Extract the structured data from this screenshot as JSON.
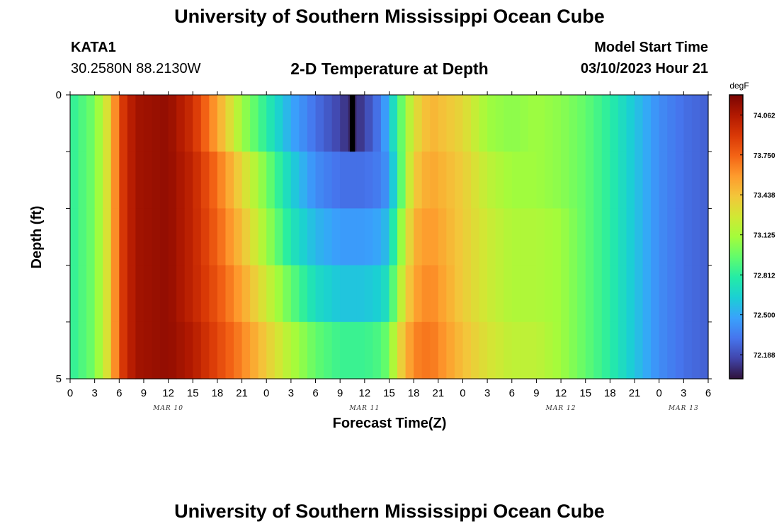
{
  "header": {
    "title": "University of Southern Mississippi Ocean Cube",
    "station_name": "KATA1",
    "station_coords": "30.2580N  88.2130W",
    "chart_title": "2-D Temperature at Depth",
    "model_label": "Model Start Time",
    "model_time": "03/10/2023 Hour 21"
  },
  "footer": {
    "title": "University of Southern Mississippi Ocean Cube"
  },
  "chart_data": {
    "type": "heatmap",
    "title": "2-D Temperature at Depth",
    "xlabel": "Forecast Time(Z)",
    "ylabel": "Depth (ft)",
    "x_unit": "hours since MAR 10 00Z",
    "xlim": [
      0,
      78
    ],
    "ylim": [
      0,
      5
    ],
    "y_inverted": true,
    "x_tick_labels": [
      "0",
      "3",
      "6",
      "9",
      "12",
      "15",
      "18",
      "21",
      "0",
      "3",
      "6",
      "9",
      "12",
      "15",
      "18",
      "21",
      "0",
      "3",
      "6",
      "9",
      "12",
      "15",
      "18",
      "21",
      "0",
      "3",
      "6"
    ],
    "x_tick_hours": [
      0,
      3,
      6,
      9,
      12,
      15,
      18,
      21,
      24,
      27,
      30,
      33,
      36,
      39,
      42,
      45,
      48,
      51,
      54,
      57,
      60,
      63,
      66,
      69,
      72,
      75,
      78
    ],
    "y_tick_labels": [
      "0",
      "5"
    ],
    "y_tick_values": [
      0,
      5
    ],
    "date_labels": [
      {
        "label": "MAR 10",
        "hour": 12
      },
      {
        "label": "MAR 11",
        "hour": 36
      },
      {
        "label": "MAR 12",
        "hour": 60
      },
      {
        "label": "MAR 13",
        "hour": 75
      }
    ],
    "depth_bands": [
      0,
      1,
      2,
      3,
      4,
      5
    ],
    "colorbar": {
      "unit": "degF",
      "ticks": [
        "74.062",
        "73.750",
        "73.438",
        "73.125",
        "72.812",
        "72.500",
        "72.188"
      ],
      "min": 72.0,
      "max": 74.219
    },
    "temperature_profiles": [
      {
        "depth_band": "0-1 ft",
        "hours": [
          0,
          3,
          5,
          6,
          8,
          12,
          15,
          18,
          21,
          24,
          27,
          30,
          33,
          34.5,
          36,
          38,
          39,
          40,
          42,
          44,
          48,
          51,
          54,
          57,
          60,
          63,
          66,
          69,
          72,
          75,
          78
        ],
        "values": [
          72.81,
          73.0,
          73.4,
          73.85,
          74.1,
          74.15,
          73.95,
          73.55,
          73.1,
          72.8,
          72.5,
          72.3,
          72.15,
          72.05,
          72.15,
          72.35,
          72.55,
          72.85,
          73.3,
          73.5,
          73.35,
          73.1,
          73.05,
          73.1,
          73.05,
          72.95,
          72.8,
          72.6,
          72.4,
          72.3,
          72.25
        ]
      },
      {
        "depth_band": "1-2 ft",
        "hours": [
          0,
          3,
          5,
          6,
          8,
          12,
          15,
          18,
          21,
          24,
          27,
          30,
          33,
          36,
          38,
          39,
          40,
          42,
          44,
          48,
          51,
          54,
          57,
          60,
          63,
          66,
          69,
          72,
          75,
          78
        ],
        "values": [
          72.81,
          73.0,
          73.4,
          73.85,
          74.1,
          74.15,
          74.0,
          73.7,
          73.35,
          73.0,
          72.65,
          72.4,
          72.3,
          72.3,
          72.35,
          72.45,
          72.8,
          73.4,
          73.55,
          73.4,
          73.2,
          73.1,
          73.1,
          73.05,
          72.95,
          72.8,
          72.6,
          72.4,
          72.3,
          72.25
        ]
      },
      {
        "depth_band": "2-3 ft",
        "hours": [
          0,
          3,
          5,
          6,
          8,
          12,
          15,
          18,
          21,
          24,
          27,
          30,
          33,
          36,
          38,
          39,
          40,
          42,
          44,
          48,
          51,
          54,
          57,
          60,
          63,
          66,
          69,
          72,
          75,
          78
        ],
        "values": [
          72.81,
          73.0,
          73.4,
          73.85,
          74.1,
          74.15,
          74.0,
          73.75,
          73.45,
          73.1,
          72.75,
          72.55,
          72.45,
          72.45,
          72.5,
          72.6,
          72.95,
          73.5,
          73.6,
          73.4,
          73.25,
          73.15,
          73.15,
          73.1,
          72.95,
          72.8,
          72.6,
          72.4,
          72.3,
          72.25
        ]
      },
      {
        "depth_band": "3-4 ft",
        "hours": [
          0,
          3,
          5,
          6,
          8,
          12,
          15,
          18,
          21,
          24,
          27,
          30,
          33,
          36,
          38,
          39,
          40,
          42,
          44,
          48,
          51,
          54,
          57,
          60,
          63,
          66,
          69,
          72,
          75,
          78
        ],
        "values": [
          72.81,
          73.0,
          73.4,
          73.85,
          74.1,
          74.15,
          74.0,
          73.8,
          73.55,
          73.25,
          72.95,
          72.7,
          72.6,
          72.6,
          72.65,
          72.75,
          73.1,
          73.55,
          73.65,
          73.4,
          73.25,
          73.15,
          73.15,
          73.1,
          72.95,
          72.8,
          72.6,
          72.4,
          72.3,
          72.25
        ]
      },
      {
        "depth_band": "4-5 ft",
        "hours": [
          0,
          3,
          5,
          6,
          8,
          12,
          15,
          18,
          21,
          24,
          27,
          30,
          33,
          36,
          38,
          39,
          40,
          42,
          44,
          48,
          51,
          54,
          57,
          60,
          63,
          66,
          69,
          72,
          75,
          78
        ],
        "values": [
          72.81,
          73.0,
          73.4,
          73.85,
          74.1,
          74.15,
          74.05,
          73.85,
          73.65,
          73.4,
          73.15,
          72.95,
          72.85,
          72.85,
          72.9,
          73.0,
          73.3,
          73.65,
          73.7,
          73.45,
          73.3,
          73.2,
          73.2,
          73.1,
          72.95,
          72.8,
          72.6,
          72.4,
          72.3,
          72.25
        ]
      }
    ],
    "marker": {
      "hour": 34.5,
      "depth_band": "0-1 ft",
      "color": "#000000"
    },
    "colormap": [
      "#30123b",
      "#4145ab",
      "#4675ed",
      "#39a2fc",
      "#1bcfd4",
      "#24eca6",
      "#61fc6c",
      "#a4fc3b",
      "#d1e834",
      "#f3c63a",
      "#fe9b2d",
      "#f36315",
      "#d93806",
      "#b11901",
      "#7a0402"
    ]
  }
}
